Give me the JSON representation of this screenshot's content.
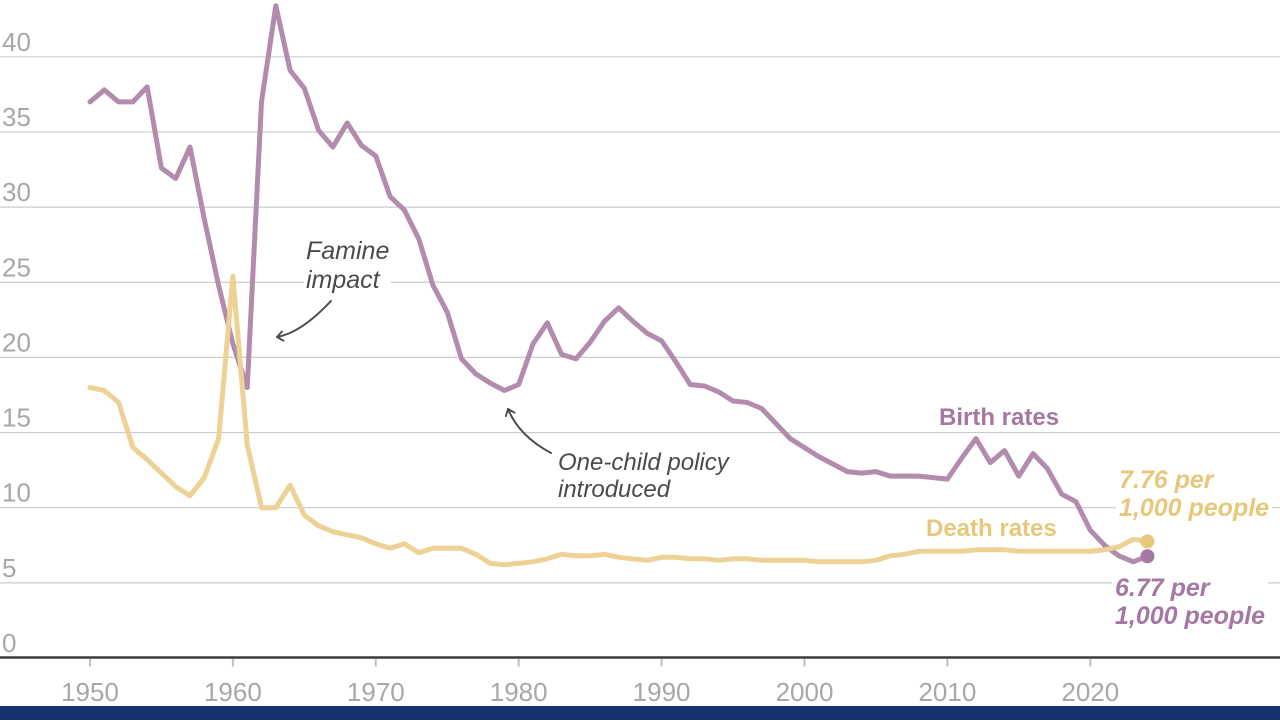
{
  "chart_data": {
    "type": "line",
    "title": "",
    "xlabel": "",
    "ylabel": "",
    "x_range": {
      "start": 1950,
      "end": 2024,
      "step": 1
    },
    "xticks": [
      1950,
      1960,
      1970,
      1980,
      1990,
      2000,
      2010,
      2020
    ],
    "yticks": [
      0,
      5,
      10,
      15,
      20,
      25,
      30,
      35,
      40
    ],
    "ylim": [
      0,
      43.5
    ],
    "grid": true,
    "legend_position": "inline-labels",
    "series": [
      {
        "name": "Birth rates",
        "color": "#b28bad",
        "accent": "#a478a2",
        "end_value": 6.77,
        "end_label": "6.77 per 1,000 people",
        "values": [
          37.0,
          37.8,
          37.0,
          37.0,
          38.0,
          32.6,
          31.9,
          34.0,
          29.2,
          24.8,
          20.9,
          18.0,
          37.0,
          43.4,
          39.1,
          37.9,
          35.1,
          34.0,
          35.6,
          34.1,
          33.4,
          30.7,
          29.8,
          27.9,
          24.8,
          23.0,
          19.9,
          18.9,
          18.3,
          17.8,
          18.2,
          20.9,
          22.3,
          20.2,
          19.9,
          21.0,
          22.4,
          23.3,
          22.4,
          21.6,
          21.1,
          19.7,
          18.2,
          18.1,
          17.7,
          17.1,
          17.0,
          16.6,
          15.6,
          14.6,
          14.0,
          13.4,
          12.9,
          12.4,
          12.3,
          12.4,
          12.1,
          12.1,
          12.1,
          12.0,
          11.9,
          13.3,
          14.6,
          13.0,
          13.8,
          12.1,
          13.6,
          12.6,
          10.9,
          10.4,
          8.5,
          7.5,
          6.8,
          6.4,
          6.77
        ]
      },
      {
        "name": "Death rates",
        "color": "#eed194",
        "accent": "#e7c77b",
        "end_value": 7.76,
        "end_label": "7.76 per 1,000 people",
        "values": [
          18.0,
          17.8,
          17.0,
          14.0,
          13.2,
          12.3,
          11.4,
          10.8,
          12.0,
          14.6,
          25.4,
          14.2,
          10.0,
          10.0,
          11.5,
          9.5,
          8.8,
          8.4,
          8.2,
          8.0,
          7.6,
          7.3,
          7.6,
          7.0,
          7.3,
          7.3,
          7.3,
          6.9,
          6.3,
          6.2,
          6.3,
          6.4,
          6.6,
          6.9,
          6.8,
          6.8,
          6.9,
          6.7,
          6.6,
          6.5,
          6.7,
          6.7,
          6.6,
          6.6,
          6.5,
          6.6,
          6.6,
          6.5,
          6.5,
          6.5,
          6.5,
          6.4,
          6.4,
          6.4,
          6.4,
          6.5,
          6.8,
          6.9,
          7.1,
          7.1,
          7.1,
          7.1,
          7.2,
          7.2,
          7.2,
          7.1,
          7.1,
          7.1,
          7.1,
          7.1,
          7.1,
          7.2,
          7.4,
          7.9,
          7.76
        ]
      }
    ],
    "annotations": [
      {
        "text": "Famine impact",
        "points_to_year": 1961
      },
      {
        "text": "One-child policy introduced",
        "points_to_year": 1979
      }
    ]
  },
  "labels": {
    "famine": {
      "line1": "Famine",
      "line2": "impact"
    },
    "one_child": {
      "line1": "One-child policy",
      "line2": "introduced"
    },
    "birth_series": "Birth rates",
    "death_series": "Death rates",
    "death_end": {
      "line1": "7.76 per",
      "line2": "1,000 people"
    },
    "birth_end": {
      "line1": "6.77 per",
      "line2": "1,000 people"
    }
  },
  "colors": {
    "birth_line": "#b28bad",
    "birth_accent": "#a478a2",
    "death_line": "#eed194",
    "death_accent": "#e7c77b",
    "grid": "#cbcbcb",
    "axis": "#3d3d3d",
    "tick": "#bfbfbf",
    "tick_label": "#a7a7a7",
    "annotation": "#4a4a4a",
    "bottom_bar": "#17336e",
    "background": "#ffffff"
  }
}
